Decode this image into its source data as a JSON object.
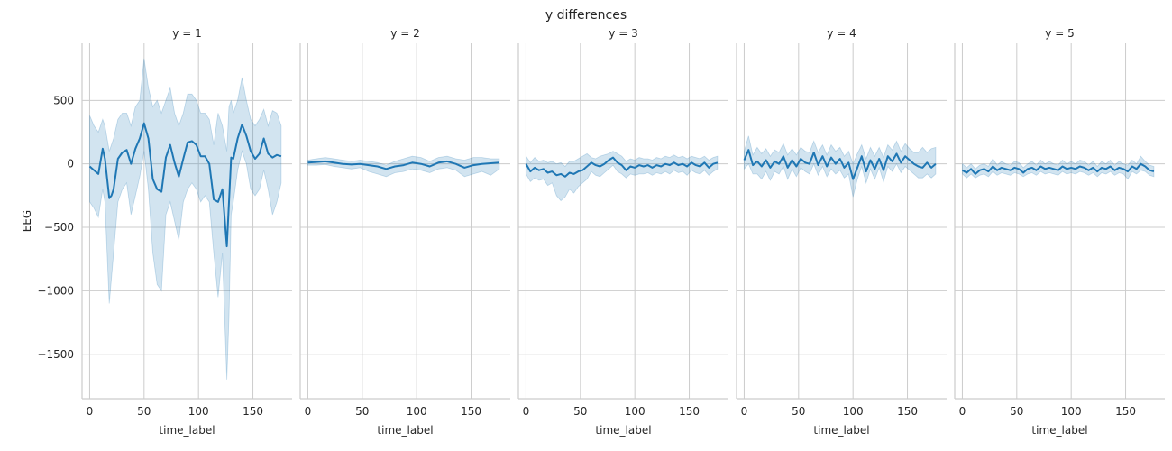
{
  "figure": {
    "suptitle": "y differences",
    "colors": {
      "line": "#1f77b4",
      "band": "#1f77b4",
      "grid": "#cccccc",
      "spine": "#cccccc"
    }
  },
  "chart_data": [
    {
      "type": "line",
      "title": "y = 1",
      "xlabel": "time_label",
      "ylabel": "EEG",
      "xlim": [
        -7,
        186
      ],
      "ylim": [
        -1850,
        950
      ],
      "xticks": [
        0,
        50,
        100,
        150
      ],
      "yticks": [
        -1500,
        -1000,
        -500,
        0,
        500
      ],
      "x": [
        0,
        4,
        8,
        12,
        14,
        18,
        20,
        22,
        26,
        30,
        34,
        38,
        42,
        46,
        50,
        54,
        58,
        62,
        66,
        70,
        74,
        78,
        82,
        86,
        90,
        94,
        98,
        102,
        106,
        110,
        114,
        118,
        122,
        126,
        128,
        130,
        132,
        136,
        140,
        144,
        148,
        152,
        156,
        160,
        164,
        168,
        172,
        176
      ],
      "y": [
        -20,
        -50,
        -80,
        120,
        40,
        -270,
        -250,
        -200,
        40,
        90,
        110,
        0,
        120,
        200,
        320,
        200,
        -120,
        -200,
        -220,
        50,
        150,
        10,
        -100,
        40,
        170,
        180,
        150,
        60,
        60,
        0,
        -280,
        -300,
        -200,
        -650,
        -300,
        50,
        40,
        200,
        310,
        220,
        100,
        40,
        80,
        200,
        80,
        50,
        70,
        60
      ],
      "lower": [
        -300,
        -350,
        -420,
        -200,
        -300,
        -1100,
        -900,
        -700,
        -300,
        -200,
        -150,
        -400,
        -250,
        -100,
        100,
        -200,
        -700,
        -950,
        -1000,
        -400,
        -300,
        -450,
        -600,
        -300,
        -200,
        -150,
        -200,
        -300,
        -250,
        -300,
        -700,
        -1050,
        -700,
        -1700,
        -1200,
        -400,
        -300,
        -50,
        100,
        0,
        -200,
        -250,
        -200,
        -50,
        -200,
        -400,
        -300,
        -150
      ],
      "upper": [
        380,
        300,
        250,
        350,
        300,
        100,
        150,
        200,
        350,
        400,
        400,
        300,
        450,
        500,
        830,
        600,
        450,
        500,
        400,
        500,
        600,
        400,
        300,
        400,
        550,
        550,
        500,
        400,
        400,
        350,
        150,
        400,
        300,
        100,
        450,
        500,
        400,
        500,
        680,
        500,
        350,
        300,
        350,
        430,
        300,
        420,
        400,
        300
      ]
    },
    {
      "type": "line",
      "title": "y = 2",
      "xlabel": "time_label",
      "ylabel": "",
      "xlim": [
        -7,
        186
      ],
      "ylim": [
        -1850,
        950
      ],
      "xticks": [
        0,
        50,
        100,
        150
      ],
      "yticks": [
        -1500,
        -1000,
        -500,
        0,
        500
      ],
      "x": [
        0,
        8,
        16,
        24,
        32,
        40,
        48,
        56,
        64,
        72,
        80,
        88,
        96,
        104,
        112,
        120,
        128,
        136,
        144,
        152,
        160,
        168,
        176
      ],
      "y": [
        10,
        15,
        20,
        10,
        0,
        -5,
        0,
        -10,
        -20,
        -40,
        -20,
        -10,
        10,
        0,
        -20,
        10,
        20,
        0,
        -30,
        -10,
        0,
        5,
        10
      ],
      "lower": [
        -10,
        -10,
        -5,
        -20,
        -30,
        -40,
        -30,
        -60,
        -80,
        -100,
        -70,
        -60,
        -40,
        -50,
        -70,
        -40,
        -30,
        -50,
        -100,
        -80,
        -60,
        -90,
        -40
      ],
      "upper": [
        30,
        40,
        50,
        40,
        30,
        20,
        30,
        20,
        10,
        -10,
        20,
        40,
        60,
        50,
        20,
        50,
        60,
        40,
        30,
        50,
        50,
        40,
        40
      ]
    },
    {
      "type": "line",
      "title": "y = 3",
      "xlabel": "time_label",
      "ylabel": "",
      "xlim": [
        -7,
        186
      ],
      "ylim": [
        -1850,
        950
      ],
      "xticks": [
        0,
        50,
        100,
        150
      ],
      "yticks": [
        -1500,
        -1000,
        -500,
        0,
        500
      ],
      "x": [
        0,
        4,
        8,
        12,
        16,
        20,
        24,
        28,
        32,
        36,
        40,
        44,
        48,
        52,
        56,
        60,
        64,
        68,
        72,
        76,
        80,
        84,
        88,
        92,
        96,
        100,
        104,
        108,
        112,
        116,
        120,
        124,
        128,
        132,
        136,
        140,
        144,
        148,
        152,
        156,
        160,
        164,
        168,
        172,
        176
      ],
      "y": [
        0,
        -60,
        -30,
        -50,
        -40,
        -70,
        -60,
        -90,
        -80,
        -100,
        -70,
        -80,
        -60,
        -50,
        -20,
        10,
        -10,
        -20,
        0,
        30,
        50,
        10,
        -10,
        -50,
        -20,
        -30,
        -10,
        -20,
        -10,
        -30,
        -10,
        -20,
        0,
        -10,
        10,
        -10,
        0,
        -20,
        10,
        -10,
        -20,
        10,
        -30,
        0,
        10
      ],
      "lower": [
        -80,
        -140,
        -110,
        -130,
        -120,
        -170,
        -150,
        -250,
        -290,
        -260,
        -200,
        -230,
        -180,
        -150,
        -120,
        -60,
        -90,
        -100,
        -70,
        -40,
        -10,
        -60,
        -80,
        -110,
        -80,
        -90,
        -80,
        -80,
        -70,
        -90,
        -70,
        -80,
        -60,
        -80,
        -50,
        -70,
        -60,
        -90,
        -50,
        -70,
        -80,
        -50,
        -90,
        -60,
        -40
      ],
      "upper": [
        60,
        10,
        50,
        20,
        30,
        10,
        20,
        0,
        10,
        -20,
        20,
        20,
        40,
        60,
        80,
        50,
        40,
        60,
        70,
        80,
        100,
        80,
        60,
        20,
        40,
        30,
        50,
        40,
        40,
        30,
        50,
        40,
        60,
        50,
        70,
        50,
        60,
        40,
        60,
        50,
        40,
        60,
        30,
        50,
        60
      ]
    },
    {
      "type": "line",
      "title": "y = 4",
      "xlabel": "time_label",
      "ylabel": "",
      "xlim": [
        -7,
        186
      ],
      "ylim": [
        -1850,
        950
      ],
      "xticks": [
        0,
        50,
        100,
        150
      ],
      "yticks": [
        -1500,
        -1000,
        -500,
        0,
        500
      ],
      "x": [
        0,
        4,
        8,
        12,
        16,
        20,
        24,
        28,
        32,
        36,
        40,
        44,
        48,
        52,
        56,
        60,
        64,
        68,
        72,
        76,
        80,
        84,
        88,
        92,
        96,
        100,
        104,
        108,
        112,
        116,
        120,
        124,
        128,
        132,
        136,
        140,
        144,
        148,
        152,
        156,
        160,
        164,
        168,
        172,
        176
      ],
      "y": [
        30,
        110,
        -10,
        20,
        -20,
        30,
        -30,
        20,
        0,
        60,
        -30,
        30,
        -20,
        40,
        10,
        0,
        90,
        -10,
        60,
        -20,
        50,
        0,
        40,
        -30,
        10,
        -120,
        -30,
        60,
        -60,
        30,
        -40,
        40,
        -50,
        60,
        20,
        80,
        10,
        60,
        30,
        0,
        -20,
        -30,
        10,
        -30,
        0
      ],
      "lower": [
        -40,
        0,
        -80,
        -80,
        -120,
        -60,
        -130,
        -60,
        -80,
        -20,
        -120,
        -40,
        -100,
        -30,
        -60,
        -80,
        0,
        -90,
        -20,
        -100,
        -40,
        -80,
        -50,
        -110,
        -80,
        -260,
        -120,
        -20,
        -150,
        -40,
        -120,
        -30,
        -140,
        -20,
        -60,
        0,
        -70,
        -20,
        -50,
        -80,
        -110,
        -110,
        -80,
        -110,
        -80
      ],
      "upper": [
        100,
        220,
        70,
        130,
        80,
        120,
        60,
        110,
        90,
        160,
        70,
        120,
        70,
        130,
        100,
        90,
        180,
        90,
        150,
        70,
        150,
        100,
        130,
        60,
        100,
        0,
        80,
        150,
        40,
        130,
        60,
        130,
        50,
        150,
        110,
        180,
        100,
        160,
        120,
        90,
        90,
        130,
        90,
        120,
        130
      ]
    },
    {
      "type": "line",
      "title": "y = 5",
      "xlabel": "time_label",
      "ylabel": "",
      "xlim": [
        -7,
        186
      ],
      "ylim": [
        -1850,
        950
      ],
      "xticks": [
        0,
        50,
        100,
        150
      ],
      "yticks": [
        -1500,
        -1000,
        -500,
        0,
        500
      ],
      "x": [
        0,
        4,
        8,
        12,
        16,
        20,
        24,
        28,
        32,
        36,
        40,
        44,
        48,
        52,
        56,
        60,
        64,
        68,
        72,
        76,
        80,
        84,
        88,
        92,
        96,
        100,
        104,
        108,
        112,
        116,
        120,
        124,
        128,
        132,
        136,
        140,
        144,
        148,
        152,
        156,
        160,
        164,
        168,
        172,
        176
      ],
      "y": [
        -50,
        -70,
        -40,
        -80,
        -50,
        -40,
        -60,
        -20,
        -50,
        -30,
        -40,
        -50,
        -30,
        -40,
        -70,
        -40,
        -30,
        -50,
        -20,
        -40,
        -30,
        -40,
        -50,
        -20,
        -40,
        -30,
        -40,
        -20,
        -30,
        -50,
        -30,
        -60,
        -30,
        -40,
        -20,
        -50,
        -30,
        -40,
        -60,
        -20,
        -40,
        0,
        -20,
        -50,
        -60
      ],
      "lower": [
        -80,
        -110,
        -80,
        -110,
        -90,
        -80,
        -100,
        -60,
        -90,
        -70,
        -80,
        -90,
        -70,
        -80,
        -100,
        -80,
        -70,
        -90,
        -60,
        -80,
        -70,
        -80,
        -90,
        -60,
        -80,
        -70,
        -80,
        -60,
        -70,
        -90,
        -70,
        -100,
        -70,
        -80,
        -60,
        -90,
        -70,
        -80,
        -120,
        -60,
        -80,
        -50,
        -60,
        -90,
        -100
      ],
      "upper": [
        0,
        -30,
        0,
        -40,
        -10,
        0,
        -20,
        40,
        -10,
        20,
        0,
        -10,
        20,
        10,
        -30,
        0,
        20,
        -10,
        30,
        0,
        20,
        0,
        -10,
        30,
        0,
        20,
        0,
        30,
        20,
        -10,
        20,
        -20,
        20,
        0,
        30,
        -10,
        20,
        0,
        -10,
        30,
        0,
        60,
        20,
        -10,
        -20
      ]
    }
  ]
}
